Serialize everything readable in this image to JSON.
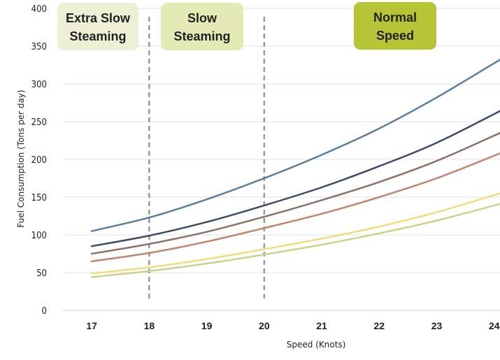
{
  "chart_data": {
    "type": "line",
    "xlabel": "Speed  (Knots)",
    "ylabel": "Fuel Consumption  (Tons per day)",
    "xlim": [
      16.5,
      24.1
    ],
    "ylim": [
      0,
      400
    ],
    "x_ticks": [
      "17",
      "18",
      "19",
      "20",
      "21",
      "22",
      "23",
      "24"
    ],
    "y_ticks": [
      "0",
      "50",
      "100",
      "150",
      "200",
      "250",
      "300",
      "350",
      "400"
    ],
    "grid": "horizontal",
    "x": [
      17,
      18,
      19,
      20,
      21,
      22,
      23,
      24.1
    ],
    "series": [
      {
        "color": "#587fa0",
        "values": [
          105,
          123,
          147,
          175,
          206,
          241,
          282,
          332
        ]
      },
      {
        "color": "#3f4a65",
        "values": [
          85,
          99,
          117,
          139,
          163,
          191,
          222,
          264
        ]
      },
      {
        "color": "#8d7169",
        "values": [
          75,
          88,
          104,
          124,
          146,
          170,
          198,
          235
        ]
      },
      {
        "color": "#c0866d",
        "values": [
          65,
          76,
          91,
          109,
          128,
          150,
          175,
          208
        ]
      },
      {
        "color": "#f3dc7f",
        "values": [
          49,
          57,
          68,
          81,
          95,
          111,
          130,
          155
        ]
      },
      {
        "color": "#c8d48a",
        "values": [
          44,
          52,
          62,
          74,
          87,
          102,
          119,
          141
        ]
      }
    ],
    "vlines": [
      18,
      20
    ],
    "zones": [
      {
        "label_line1": "Extra Slow",
        "label_line2": "Steaming",
        "fill": "#eef0d5"
      },
      {
        "label_line1": "Slow",
        "label_line2": "Steaming",
        "fill": "#e3eab6"
      },
      {
        "label_line1": "Normal",
        "label_line2": "Speed",
        "fill": "#b7c435"
      }
    ]
  }
}
